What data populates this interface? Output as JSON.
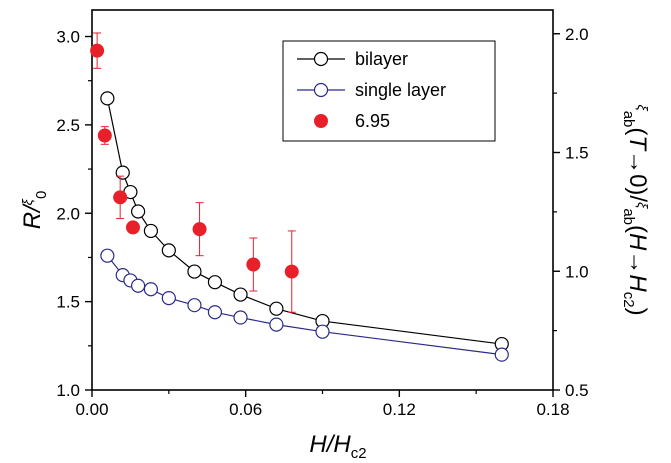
{
  "chart_data": {
    "type": "scatter",
    "x_axis": {
      "label": "H/H",
      "label_sub": "c2",
      "lim": [
        0,
        0.18
      ],
      "ticks": [
        0.0,
        0.06,
        0.12,
        0.18
      ],
      "tick_labels": [
        "0.00",
        "0.06",
        "0.12",
        "0.18"
      ]
    },
    "y_axis_left": {
      "label_main": "R/",
      "label_xi": "ξ",
      "label_sub": "0",
      "lim": [
        1.0,
        3.15
      ],
      "ticks": [
        1.0,
        1.5,
        2.0,
        2.5,
        3.0
      ],
      "tick_labels": [
        "1.0",
        "1.5",
        "2.0",
        "2.5",
        "3.0"
      ]
    },
    "y_axis_right": {
      "label_xi1": "ξ",
      "label_sub1": "ab",
      "label_mid1": "(",
      "label_T": "T",
      "label_mid2": "→0)/",
      "label_xi2": "ξ",
      "label_sub2": "ab",
      "label_mid3": "(",
      "label_H": "H",
      "label_arrow": "→",
      "label_H2": "H",
      "label_sub3": "c2",
      "label_end": ")",
      "lim": [
        0.5,
        2.1
      ],
      "ticks": [
        0.5,
        1.0,
        1.5,
        2.0
      ],
      "tick_labels": [
        "0.5",
        "1.0",
        "1.5",
        "2.0"
      ]
    },
    "legend": {
      "placement": "top-right"
    },
    "series": [
      {
        "name": "bilayer",
        "style": "open-circle-line",
        "color": "#000000",
        "x": [
          0.006,
          0.012,
          0.015,
          0.018,
          0.023,
          0.03,
          0.04,
          0.048,
          0.058,
          0.072,
          0.09,
          0.16
        ],
        "y": [
          2.65,
          2.23,
          2.12,
          2.01,
          1.9,
          1.79,
          1.67,
          1.61,
          1.54,
          1.46,
          1.39,
          1.26
        ]
      },
      {
        "name": "single layer",
        "style": "open-circle-line",
        "color": "#2a2a8a",
        "x": [
          0.006,
          0.012,
          0.015,
          0.018,
          0.023,
          0.03,
          0.04,
          0.048,
          0.058,
          0.072,
          0.09,
          0.16
        ],
        "y": [
          1.76,
          1.65,
          1.62,
          1.59,
          1.57,
          1.52,
          1.48,
          1.44,
          1.41,
          1.37,
          1.33,
          1.2
        ]
      },
      {
        "name": "6.95",
        "style": "filled-circle-errorbar",
        "color": "#e8202a",
        "x": [
          0.002,
          0.005,
          0.011,
          0.016,
          0.042,
          0.063,
          0.078
        ],
        "y": [
          2.92,
          2.44,
          2.09,
          1.92,
          1.91,
          1.71,
          1.67
        ],
        "err": [
          0.1,
          0.05,
          0.12,
          0.02,
          0.15,
          0.15,
          0.23
        ]
      }
    ]
  }
}
